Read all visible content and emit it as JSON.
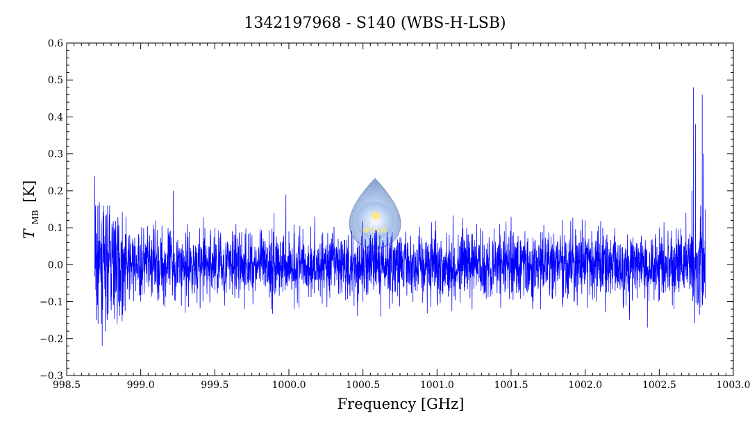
{
  "chart_data": {
    "type": "line",
    "title": "1342197968 - S140 (WBS-H-LSB)",
    "xlabel": "Frequency [GHz]",
    "ylabel_main": "T",
    "ylabel_sub": "MB",
    "ylabel_unit": "[K]",
    "xlim": [
      998.5,
      1003.0
    ],
    "ylim": [
      -0.3,
      0.6
    ],
    "x_ticks": [
      998.5,
      999.0,
      999.5,
      1000.0,
      1000.5,
      1001.0,
      1001.5,
      1002.0,
      1002.5,
      1003.0
    ],
    "x_tick_labels": [
      "998.5",
      "999.0",
      "999.5",
      "1000.0",
      "1000.5",
      "1001.0",
      "1001.5",
      "1002.0",
      "1002.5",
      "1003.0"
    ],
    "y_ticks": [
      -0.3,
      -0.2,
      -0.1,
      0.0,
      0.1,
      0.2,
      0.3,
      0.4,
      0.5,
      0.6
    ],
    "y_tick_labels": [
      "−0.3",
      "−0.2",
      "−0.1",
      "0.0",
      "0.1",
      "0.2",
      "0.3",
      "0.4",
      "0.5",
      "0.6"
    ],
    "grid": false,
    "series": [
      {
        "color": "#0000ff",
        "x_range": [
          998.69,
          1002.81
        ],
        "baseline_rms": 0.045,
        "x": [
          998.69,
          998.7,
          998.71,
          998.72,
          998.74,
          998.76,
          998.79,
          998.85,
          998.9,
          999.0,
          999.1,
          999.22,
          999.3,
          999.5,
          999.7,
          999.9,
          999.98,
          1000.0,
          1000.2,
          1000.4,
          1000.5,
          1000.62,
          1000.8,
          1001.0,
          1001.2,
          1001.5,
          1001.7,
          1002.0,
          1002.3,
          1002.42,
          1002.5,
          1002.6,
          1002.68,
          1002.72,
          1002.73,
          1002.745,
          1002.76,
          1002.79,
          1002.8,
          1002.81
        ],
        "y": [
          0.24,
          -0.15,
          0.15,
          0.17,
          -0.22,
          -0.18,
          0.16,
          -0.1,
          0.13,
          -0.1,
          0.12,
          0.2,
          -0.13,
          0.1,
          -0.12,
          0.14,
          0.19,
          0.09,
          -0.07,
          0.08,
          -0.1,
          -0.14,
          0.06,
          -0.08,
          0.1,
          0.13,
          -0.12,
          0.12,
          -0.15,
          -0.17,
          0.1,
          -0.12,
          0.14,
          0.2,
          0.48,
          0.38,
          -0.09,
          0.46,
          0.3,
          0.15
        ]
      }
    ]
  },
  "logo": {
    "label": "WISH",
    "colors": {
      "outer": "#8aa8d8",
      "inner": "#c5d6f0",
      "star": "#ffe65a"
    }
  }
}
